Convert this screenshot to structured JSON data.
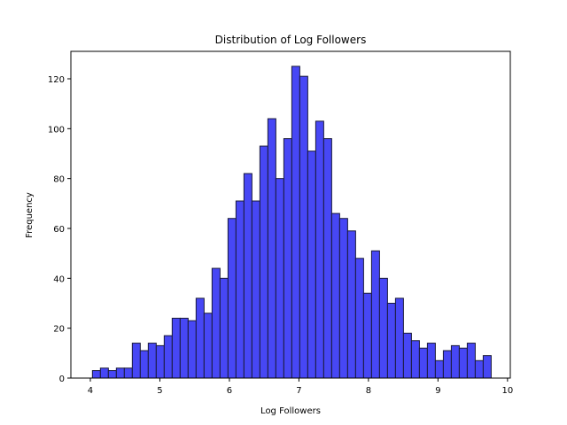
{
  "chart_data": {
    "type": "bar",
    "title": "Distribution of Log Followers",
    "xlabel": "Log Followers",
    "ylabel": "Frequency",
    "xlim": [
      3.72,
      10.04
    ],
    "ylim": [
      0,
      131
    ],
    "xticks": [
      4,
      5,
      6,
      7,
      8,
      9,
      10
    ],
    "yticks": [
      0,
      20,
      40,
      60,
      80,
      100,
      120
    ],
    "bin_start": 4.03,
    "bin_width": 0.1147,
    "values": [
      3,
      4,
      3,
      4,
      4,
      14,
      11,
      14,
      13,
      17,
      24,
      24,
      23,
      32,
      26,
      44,
      40,
      64,
      71,
      82,
      71,
      93,
      104,
      80,
      96,
      125,
      121,
      91,
      103,
      96,
      66,
      64,
      59,
      48,
      34,
      51,
      40,
      30,
      32,
      18,
      15,
      12,
      14,
      7,
      11,
      13,
      12,
      14,
      7,
      9
    ],
    "bar_color": "#4747f5",
    "bar_edge_color": "#1a1a3a",
    "grid": false,
    "legend": "none"
  }
}
